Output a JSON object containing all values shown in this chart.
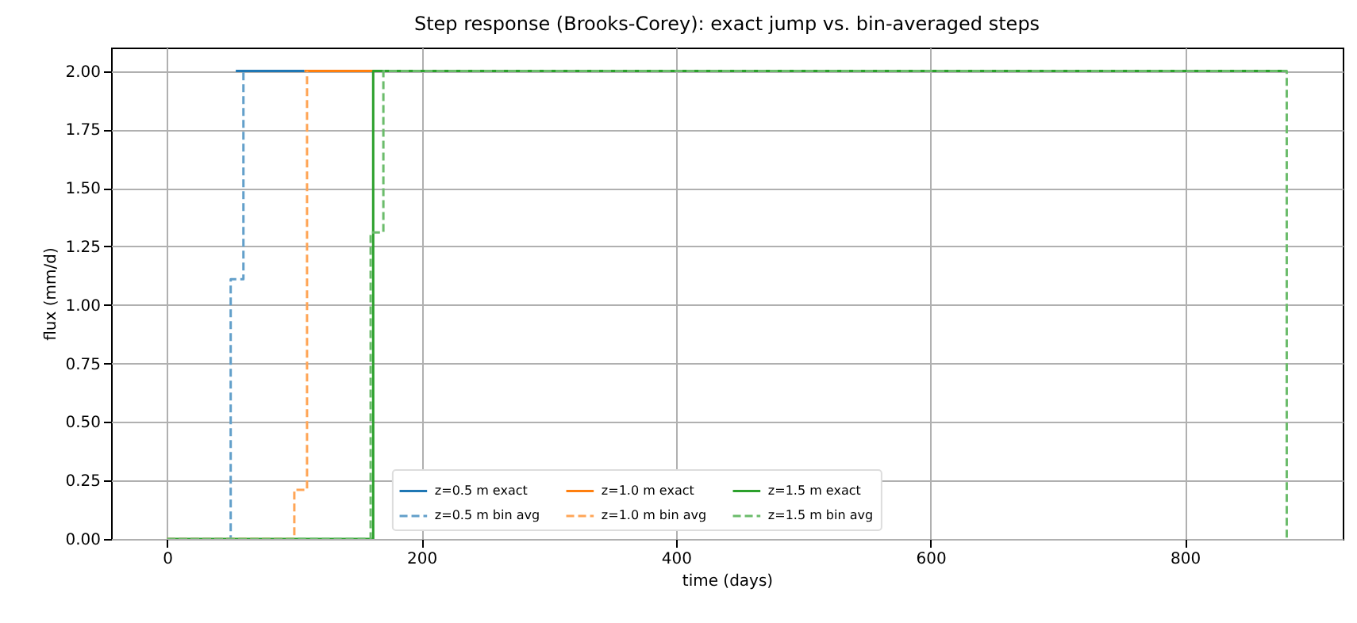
{
  "chart_data": {
    "type": "step",
    "title": "Step response (Brooks-Corey): exact jump vs. bin-averaged steps",
    "xlabel": "time (days)",
    "ylabel": "flux (mm/d)",
    "xlim": [
      -44,
      924
    ],
    "ylim": [
      0,
      2.1
    ],
    "xticks": [
      0,
      200,
      400,
      600,
      800
    ],
    "yticks": [
      {
        "value": 0,
        "label": "0.00"
      },
      {
        "value": 0.25,
        "label": "0.25"
      },
      {
        "value": 0.5,
        "label": "0.50"
      },
      {
        "value": 0.75,
        "label": "0.75"
      },
      {
        "value": 1,
        "label": "1.00"
      },
      {
        "value": 1.25,
        "label": "1.25"
      },
      {
        "value": 1.5,
        "label": "1.50"
      },
      {
        "value": 1.75,
        "label": "1.75"
      },
      {
        "value": 2,
        "label": "2.00"
      }
    ],
    "grid": true,
    "legend": "bottom",
    "series": [
      {
        "name": "z=0.5 m exact",
        "color": "#1f77b4",
        "line_style": "solid",
        "x": [
          54,
          108
        ],
        "values": [
          2,
          2
        ]
      },
      {
        "name": "z=1.0 m exact",
        "color": "#ff7f0e",
        "line_style": "solid",
        "x": [
          108,
          162
        ],
        "values": [
          2,
          2
        ]
      },
      {
        "name": "z=1.5 m exact",
        "color": "#2ca02c",
        "line_style": "solid",
        "x": [
          0,
          162,
          880
        ],
        "values": [
          0,
          2,
          2
        ]
      },
      {
        "name": "z=0.5 m bin avg",
        "color": "#629fca",
        "line_style": "dashed",
        "x": [
          0,
          50,
          60
        ],
        "values": [
          0,
          1.11,
          2
        ]
      },
      {
        "name": "z=1.0 m bin avg",
        "color": "#ffa556",
        "line_style": "dashed",
        "x": [
          0,
          100,
          110
        ],
        "values": [
          0,
          0.21,
          2
        ]
      },
      {
        "name": "z=1.5 m bin avg",
        "color": "#6bbc6b",
        "line_style": "dashed",
        "x": [
          0,
          160,
          170,
          880
        ],
        "values": [
          0,
          1.31,
          2,
          0
        ]
      }
    ]
  }
}
